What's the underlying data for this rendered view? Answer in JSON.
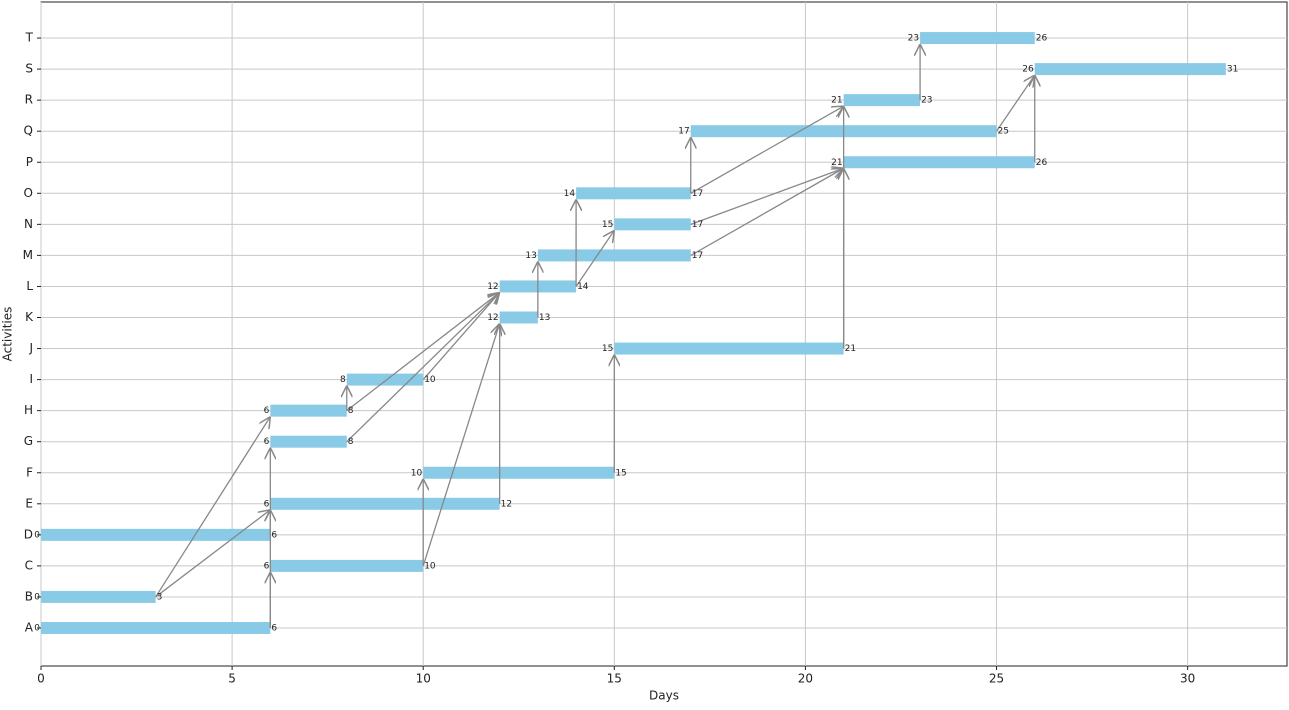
{
  "chart_data": {
    "type": "gantt",
    "xlabel": "Days",
    "ylabel": "Activities",
    "categories": [
      "A",
      "B",
      "C",
      "D",
      "E",
      "F",
      "G",
      "H",
      "I",
      "J",
      "K",
      "L",
      "M",
      "N",
      "O",
      "P",
      "Q",
      "R",
      "S",
      "T"
    ],
    "starts": [
      0,
      0,
      6,
      0,
      6,
      10,
      6,
      6,
      8,
      15,
      12,
      12,
      13,
      15,
      14,
      21,
      17,
      21,
      26,
      23
    ],
    "ends": [
      6,
      3,
      10,
      6,
      12,
      15,
      8,
      8,
      10,
      21,
      13,
      14,
      17,
      17,
      17,
      26,
      25,
      23,
      31,
      26
    ],
    "color": "#89cbe6",
    "arrow_color": "#888888",
    "dependencies": [
      [
        "A",
        "C"
      ],
      [
        "D",
        "E"
      ],
      [
        "B",
        "E"
      ],
      [
        "B",
        "H"
      ],
      [
        "A",
        "G"
      ],
      [
        "C",
        "F"
      ],
      [
        "C",
        "K"
      ],
      [
        "E",
        "K"
      ],
      [
        "G",
        "L"
      ],
      [
        "H",
        "I"
      ],
      [
        "H",
        "L"
      ],
      [
        "I",
        "L"
      ],
      [
        "F",
        "J"
      ],
      [
        "K",
        "M"
      ],
      [
        "L",
        "O"
      ],
      [
        "L",
        "N"
      ],
      [
        "O",
        "Q"
      ],
      [
        "O",
        "R"
      ],
      [
        "N",
        "P"
      ],
      [
        "M",
        "P"
      ],
      [
        "J",
        "P"
      ],
      [
        "J",
        "R"
      ],
      [
        "P",
        "S"
      ],
      [
        "Q",
        "S"
      ],
      [
        "R",
        "T"
      ]
    ],
    "xlim": [
      0,
      32.6
    ],
    "xticks": [
      0,
      5,
      10,
      15,
      20,
      25,
      30
    ],
    "grid": true
  }
}
